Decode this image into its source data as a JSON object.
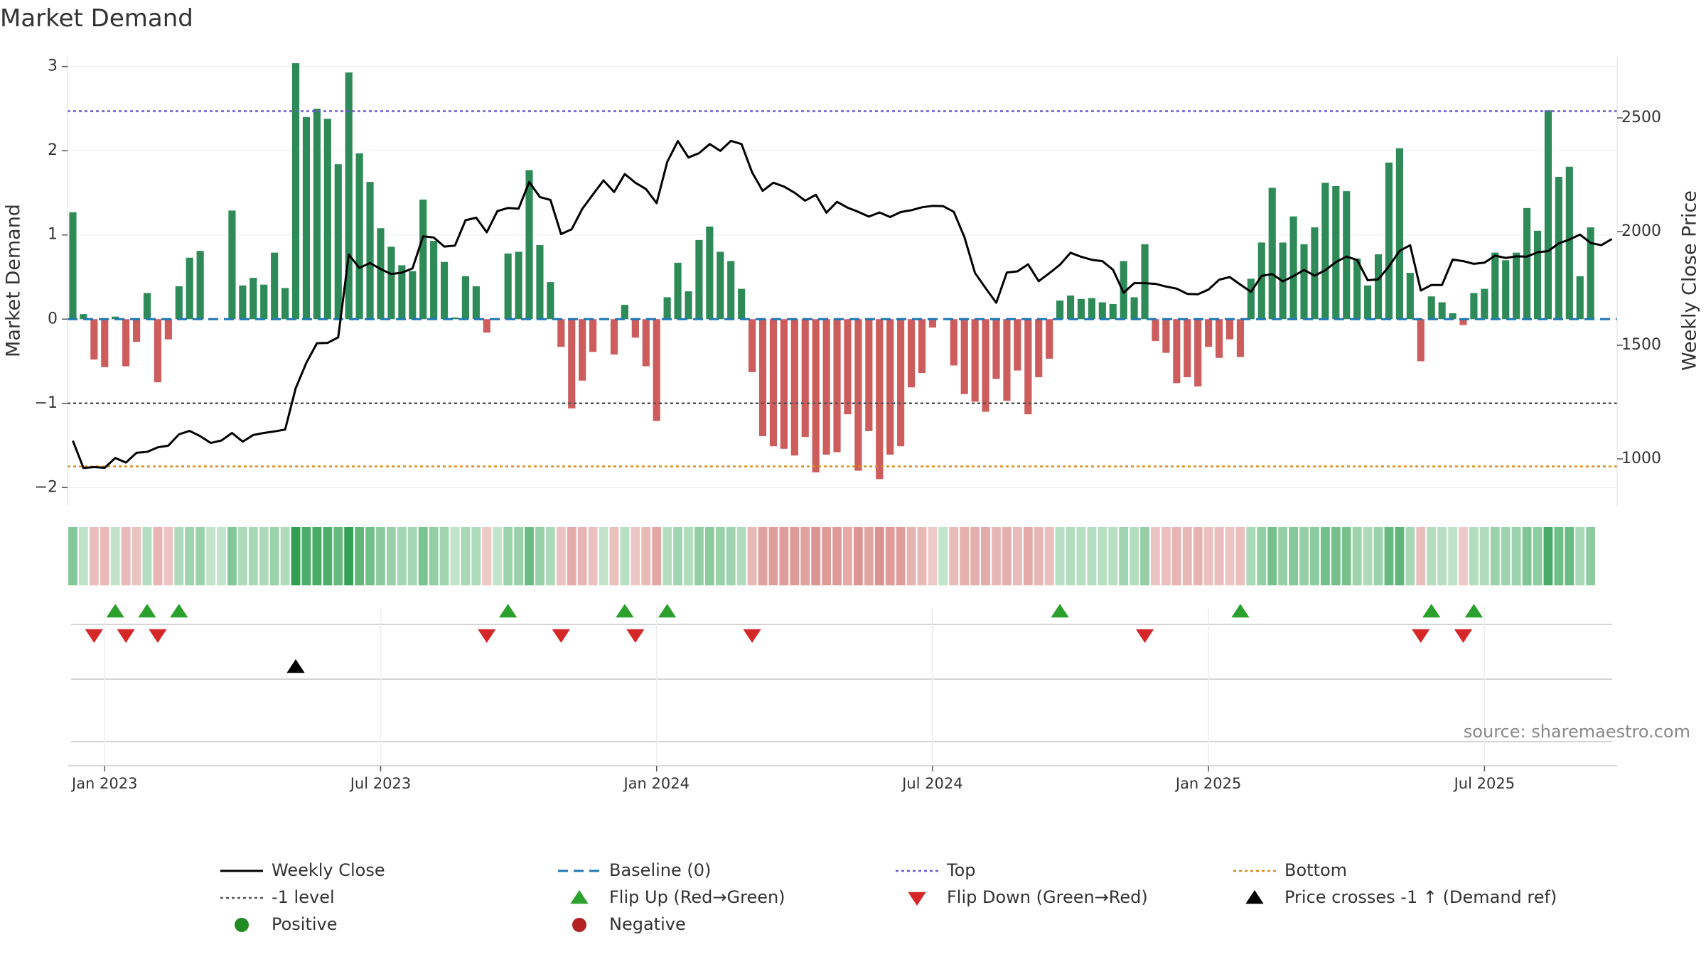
{
  "chart_data": {
    "type": "bar",
    "title": "Market Demand",
    "ylabel_left": "Market Demand",
    "ylabel_right": "Weekly Close Price",
    "ylim_left": [
      -2.2,
      3.2
    ],
    "ylim_right": [
      800,
      2800
    ],
    "yticks_left": [
      {
        "value": 3,
        "label": "3"
      },
      {
        "value": 2,
        "label": "2"
      },
      {
        "value": 1,
        "label": "1"
      },
      {
        "value": 0,
        "label": "0"
      },
      {
        "value": -1,
        "label": "−1"
      },
      {
        "value": -2,
        "label": "−2"
      }
    ],
    "yticks_right": [
      {
        "value": 2500,
        "label": "2500"
      },
      {
        "value": 2000,
        "label": "2000"
      },
      {
        "value": 1500,
        "label": "1500"
      },
      {
        "value": 1000,
        "label": "1000"
      }
    ],
    "xticks": [
      {
        "week": 3,
        "label": "Jan 2023"
      },
      {
        "week": 29,
        "label": "Jul 2023"
      },
      {
        "week": 55,
        "label": "Jan 2024"
      },
      {
        "week": 81,
        "label": "Jul 2024"
      },
      {
        "week": 107,
        "label": "Jan 2025"
      },
      {
        "week": 133,
        "label": "Jul 2025"
      }
    ],
    "week_start": "2022-12-19",
    "weeks": 146,
    "reference_lines": {
      "top": 2.47,
      "minus_one": -1.0,
      "bottom": -1.75,
      "baseline": 0
    },
    "demand": [
      1.27,
      0.06,
      -0.48,
      -0.57,
      0.03,
      -0.56,
      -0.27,
      0.31,
      -0.75,
      -0.24,
      0.39,
      0.73,
      0.81,
      0,
      0,
      1.29,
      0.4,
      0.49,
      0.41,
      0.79,
      0.37,
      3.04,
      2.4,
      2.5,
      2.38,
      1.84,
      2.93,
      1.97,
      1.63,
      1.08,
      0.86,
      0.64,
      0.57,
      1.42,
      0.93,
      0.68,
      0.02,
      0.51,
      0.39,
      -0.16,
      0,
      0.78,
      0.8,
      1.77,
      0.88,
      0.44,
      -0.33,
      -1.06,
      -0.73,
      -0.39,
      0,
      -0.42,
      0.17,
      -0.22,
      -0.56,
      -1.21,
      0.26,
      0.67,
      0.33,
      0.94,
      1.1,
      0.8,
      0.69,
      0.36,
      -0.63,
      -1.39,
      -1.51,
      -1.54,
      -1.62,
      -1.4,
      -1.82,
      -1.61,
      -1.58,
      -1.13,
      -1.8,
      -1.33,
      -1.9,
      -1.61,
      -1.51,
      -0.81,
      -0.64,
      -0.1,
      0,
      -0.55,
      -0.89,
      -0.98,
      -1.1,
      -0.71,
      -0.97,
      -0.61,
      -1.13,
      -0.69,
      -0.47,
      0.22,
      0.28,
      0.24,
      0.25,
      0.2,
      0.18,
      0.69,
      0.26,
      0.89,
      -0.26,
      -0.4,
      -0.76,
      -0.69,
      -0.8,
      -0.33,
      -0.46,
      -0.24,
      -0.45,
      0.48,
      0.91,
      1.56,
      0.91,
      1.22,
      0.89,
      1.09,
      1.62,
      1.58,
      1.52,
      0.72,
      0.4,
      0.77,
      1.86,
      2.03,
      0.55,
      -0.5,
      0.27,
      0.2,
      0.07,
      -0.07,
      0.31,
      0.36,
      0.79,
      0.7,
      0.79,
      1.32,
      1.05,
      2.48,
      1.69,
      1.81,
      0.51,
      1.09
    ],
    "weekly_close": [
      1080,
      960,
      964,
      961,
      1004,
      984,
      1027,
      1031,
      1051,
      1058,
      1108,
      1123,
      1100,
      1070,
      1081,
      1114,
      1076,
      1105,
      1114,
      1121,
      1129,
      1311,
      1423,
      1509,
      1510,
      1535,
      1899,
      1840,
      1862,
      1835,
      1813,
      1819,
      1838,
      1979,
      1974,
      1934,
      1938,
      2050,
      2061,
      1997,
      2090,
      2104,
      2101,
      2218,
      2152,
      2139,
      1989,
      2010,
      2100,
      2163,
      2225,
      2174,
      2253,
      2215,
      2187,
      2125,
      2306,
      2398,
      2326,
      2345,
      2385,
      2355,
      2399,
      2385,
      2260,
      2179,
      2215,
      2198,
      2171,
      2136,
      2162,
      2083,
      2131,
      2105,
      2087,
      2066,
      2084,
      2064,
      2086,
      2094,
      2107,
      2113,
      2112,
      2087,
      1976,
      1818,
      1751,
      1687,
      1820,
      1825,
      1856,
      1782,
      1817,
      1854,
      1907,
      1889,
      1876,
      1870,
      1832,
      1731,
      1773,
      1773,
      1770,
      1758,
      1749,
      1726,
      1724,
      1745,
      1788,
      1800,
      1767,
      1735,
      1805,
      1813,
      1781,
      1804,
      1831,
      1806,
      1830,
      1866,
      1890,
      1875,
      1786,
      1790,
      1847,
      1915,
      1940,
      1741,
      1765,
      1765,
      1877,
      1870,
      1858,
      1863,
      1894,
      1884,
      1891,
      1890,
      1909,
      1914,
      1948,
      1965,
      1987,
      1950,
      1940,
      1967
    ],
    "heatmap_strip": "one cell per week, green = positive demand, red = negative demand, shade = magnitude",
    "flip_up_weeks": [
      4,
      7,
      10,
      41,
      52,
      56,
      93,
      110,
      128,
      132
    ],
    "flip_down_weeks": [
      2,
      5,
      8,
      39,
      46,
      53,
      64,
      101,
      127,
      131
    ],
    "price_cross_weeks": [
      21
    ],
    "colors": {
      "positive_bar": "#2e8b57",
      "negative_bar": "#cd5c5c",
      "close_line": "#000000",
      "baseline": "#1f77b4",
      "top_line": "#6a5acd",
      "minus_one_line": "#555555",
      "bottom_line": "#d98b1f",
      "flip_up": "#2ca02c",
      "flip_down": "#d62728",
      "price_cross": "#000000",
      "positive_dot": "#228b22",
      "negative_dot": "#b22222"
    },
    "legend": [
      {
        "key": "close",
        "label": "Weekly Close"
      },
      {
        "key": "baseline",
        "label": "Baseline (0)"
      },
      {
        "key": "top",
        "label": "Top"
      },
      {
        "key": "bottom",
        "label": "Bottom"
      },
      {
        "key": "minus_one",
        "label": "-1 level"
      },
      {
        "key": "flip_up",
        "label": "Flip Up (Red→Green)"
      },
      {
        "key": "flip_down",
        "label": "Flip Down (Green→Red)"
      },
      {
        "key": "price_cross",
        "label": "Price crosses -1 ↑ (Demand ref)"
      },
      {
        "key": "positive",
        "label": "Positive"
      },
      {
        "key": "negative",
        "label": "Negative"
      }
    ],
    "source": "source: sharemaestro.com"
  }
}
